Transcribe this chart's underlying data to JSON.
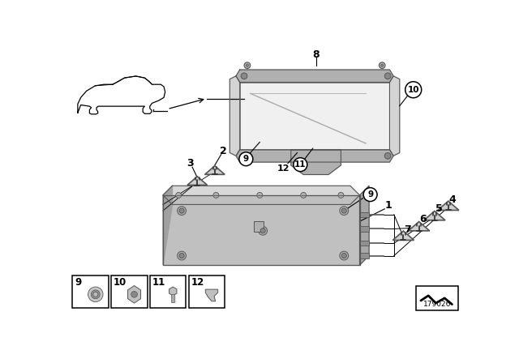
{
  "bg_color": "#ffffff",
  "diagram_id": "179026",
  "line_color": "#000000",
  "gray_light": "#d4d4d4",
  "gray_mid": "#b0b0b0",
  "gray_dark": "#888888",
  "gray_edge": "#555555",
  "white": "#ffffff"
}
